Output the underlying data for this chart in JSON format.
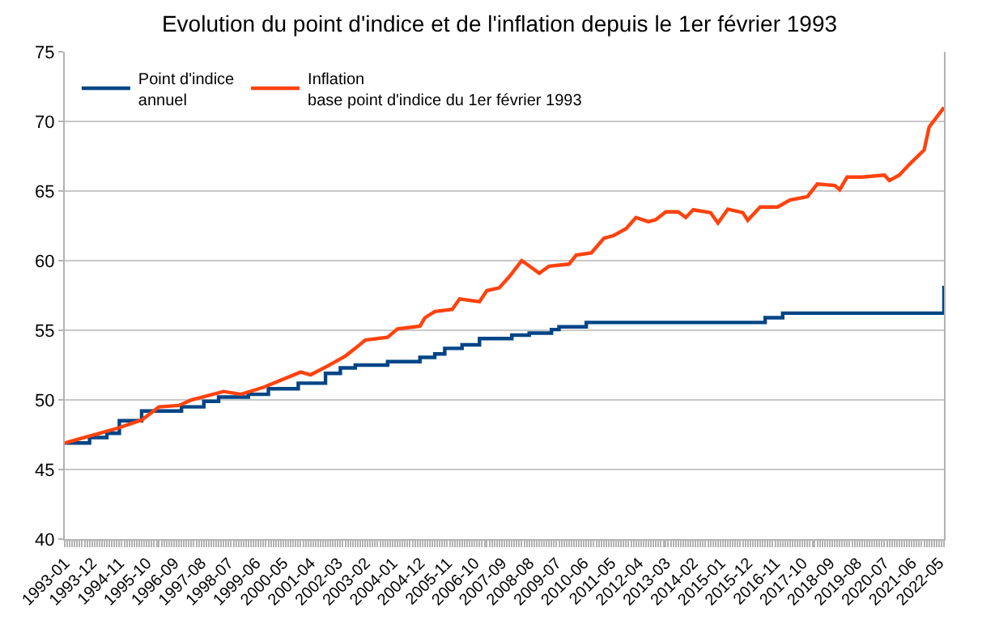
{
  "chart_data": {
    "type": "line",
    "title": "Evolution du point d'indice et de l'inflation depuis le 1er février 1993",
    "xlim": [
      "1993-01",
      "2022-07"
    ],
    "xticks": [
      "1993-01",
      "1993-12",
      "1994-11",
      "1995-10",
      "1996-09",
      "1997-08",
      "1998-07",
      "1999-06",
      "2000-05",
      "2001-04",
      "2002-03",
      "2003-02",
      "2004-01",
      "2004-12",
      "2005-11",
      "2006-10",
      "2007-09",
      "2008-08",
      "2009-07",
      "2010-06",
      "2011-05",
      "2012-04",
      "2013-03",
      "2014-02",
      "2015-01",
      "2015-12",
      "2016-11",
      "2017-10",
      "2018-09",
      "2019-08",
      "2020-07",
      "2021-06",
      "2022-05"
    ],
    "ylim": [
      40,
      75
    ],
    "yticks": [
      40,
      45,
      50,
      55,
      60,
      65,
      70,
      75
    ],
    "grid": "y",
    "legend": "top left",
    "marker": "none",
    "line_style": "solid",
    "series": [
      {
        "name": "Point d'indice\nannuel",
        "type": "step",
        "color": "#004586",
        "x": [
          "1993-01",
          "1993-11",
          "1994-06",
          "1994-11",
          "1995-08",
          "1996-12",
          "1997-09",
          "1998-03",
          "1999-03",
          "1999-11",
          "2000-11",
          "2001-10",
          "2002-04",
          "2002-10",
          "2003-11",
          "2004-12",
          "2005-06",
          "2005-10",
          "2006-05",
          "2006-12",
          "2008-01",
          "2008-08",
          "2009-05",
          "2009-08",
          "2010-07",
          "2016-07",
          "2017-02",
          "2022-06",
          "2022-07"
        ],
        "values": [
          46.9,
          47.3,
          47.6,
          48.5,
          49.2,
          49.5,
          49.9,
          50.2,
          50.4,
          50.8,
          51.2,
          51.9,
          52.3,
          52.5,
          52.75,
          53.05,
          53.3,
          53.7,
          53.95,
          54.4,
          54.65,
          54.8,
          55.05,
          55.25,
          55.56,
          55.9,
          56.23,
          56.23,
          58.2
        ]
      },
      {
        "name": "Inflation\nbase point d'indice du 1er février 1993",
        "color": "#ff420e",
        "x": [
          "1993-01",
          "1993-09",
          "1994-03",
          "1994-10",
          "1995-08",
          "1996-03",
          "1996-11",
          "1997-04",
          "1998-05",
          "1998-12",
          "1999-09",
          "2000-12",
          "2001-04",
          "2001-11",
          "2002-06",
          "2002-10",
          "2003-02",
          "2003-11",
          "2004-03",
          "2004-12",
          "2005-02",
          "2005-06",
          "2006-01",
          "2006-04",
          "2006-12",
          "2007-03",
          "2007-08",
          "2007-12",
          "2008-05",
          "2008-07",
          "2008-12",
          "2009-04",
          "2009-12",
          "2010-03",
          "2010-09",
          "2011-02",
          "2011-06",
          "2011-11",
          "2012-03",
          "2012-08",
          "2012-11",
          "2013-03",
          "2013-08",
          "2013-11",
          "2014-02",
          "2014-09",
          "2014-12",
          "2015-04",
          "2015-10",
          "2015-12",
          "2016-05",
          "2016-12",
          "2017-05",
          "2017-12",
          "2018-04",
          "2018-11",
          "2019-01",
          "2019-04",
          "2019-10",
          "2020-07",
          "2020-09",
          "2021-01",
          "2021-05",
          "2021-11",
          "2022-01",
          "2022-07"
        ],
        "values": [
          46.9,
          47.3,
          47.6,
          47.95,
          48.55,
          49.5,
          49.6,
          50.0,
          50.6,
          50.4,
          50.9,
          52.0,
          51.8,
          52.45,
          53.15,
          53.7,
          54.3,
          54.5,
          55.1,
          55.3,
          55.9,
          56.35,
          56.5,
          57.25,
          57.05,
          57.85,
          58.05,
          58.85,
          60.0,
          59.75,
          59.1,
          59.6,
          59.75,
          60.4,
          60.55,
          61.6,
          61.8,
          62.3,
          63.1,
          62.8,
          62.95,
          63.5,
          63.5,
          63.1,
          63.65,
          63.45,
          62.7,
          63.7,
          63.45,
          62.9,
          63.85,
          63.85,
          64.35,
          64.6,
          65.5,
          65.4,
          65.1,
          66.0,
          66.0,
          66.15,
          65.75,
          66.15,
          66.9,
          67.95,
          69.6,
          71.0
        ]
      }
    ]
  }
}
